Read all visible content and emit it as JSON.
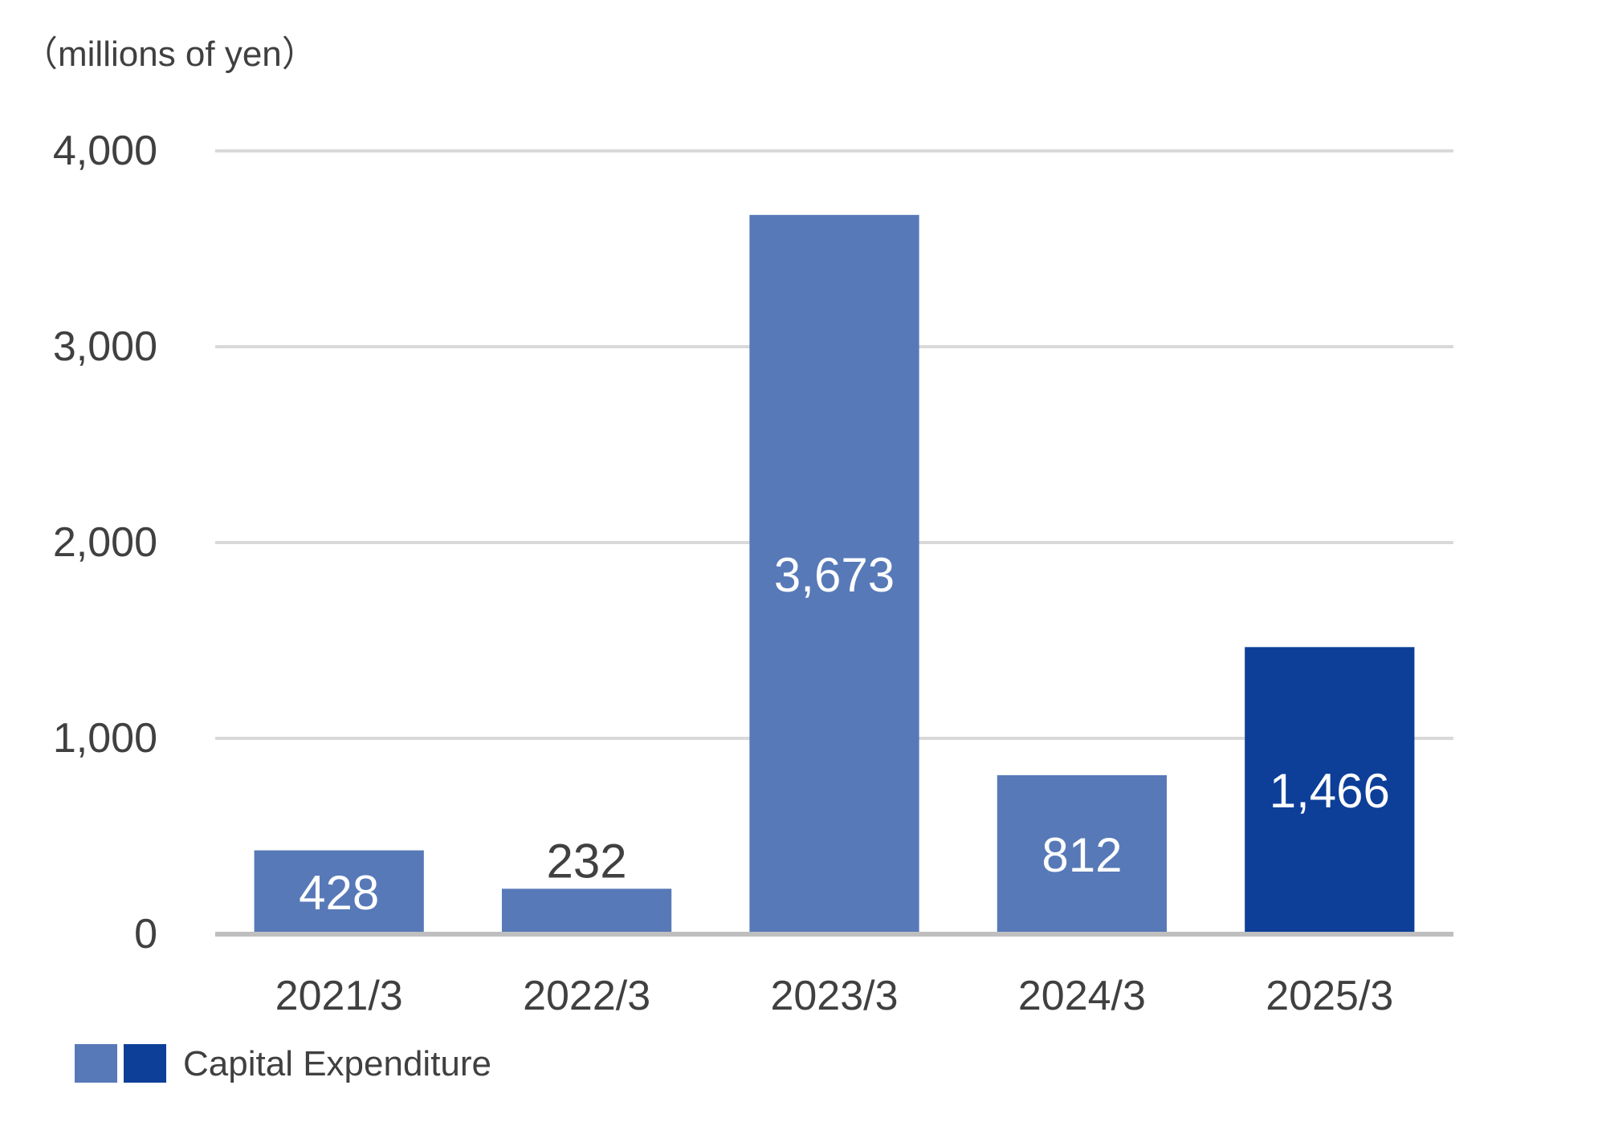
{
  "chart_data": {
    "type": "bar",
    "unit_label": "（millions of yen）",
    "categories": [
      "2021/3",
      "2022/3",
      "2023/3",
      "2024/3",
      "2025/3"
    ],
    "series": [
      {
        "name": "Capital Expenditure",
        "values": [
          428,
          232,
          3673,
          812,
          1466
        ],
        "value_labels": [
          "428",
          "232",
          "3,673",
          "812",
          "1,466"
        ],
        "colors": [
          "#5779b8",
          "#5779b8",
          "#5779b8",
          "#5779b8",
          "#0d3f98"
        ]
      }
    ],
    "yticks": [
      0,
      1000,
      2000,
      3000,
      4000
    ],
    "ytick_labels": [
      "0",
      "1,000",
      "2,000",
      "3,000",
      "4,000"
    ],
    "ylim": [
      0,
      4000
    ],
    "grid": true,
    "legend": {
      "label": "Capital Expenditure",
      "swatch_colors": [
        "#5779b8",
        "#0d3f98"
      ],
      "position": "bottom-left"
    }
  }
}
